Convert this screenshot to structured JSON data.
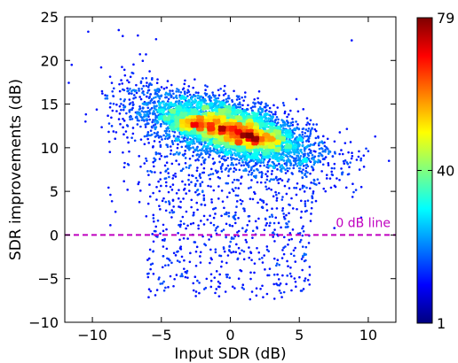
{
  "chart_data": {
    "type": "scatter",
    "xlabel": "Input SDR (dB)",
    "ylabel": "SDR improvements (dB)",
    "xlim": [
      -12,
      12
    ],
    "ylim": [
      -10,
      25
    ],
    "xticks": [
      -10,
      -5,
      0,
      5,
      10
    ],
    "yticks": [
      -10,
      -5,
      0,
      5,
      10,
      15,
      20,
      25
    ],
    "grid": false,
    "colormap": "jet",
    "reference_line": {
      "y": 0,
      "label": "0 dB line",
      "style": "dashed",
      "color": "#bf00bf"
    },
    "colorbar": {
      "min": 1,
      "max": 79,
      "ticks": [
        1,
        40,
        79
      ]
    },
    "point_cloud": {
      "description_of_distribution": "dense elongated cluster with negative slope plus sparse tail",
      "core": {
        "x_center": 0,
        "y_at_x0": 12,
        "slope": -0.4,
        "x_spread": 2.9,
        "y_spread": 1.6
      },
      "high_density_peaks": [
        {
          "x": -2.5,
          "y": 12.8
        },
        {
          "x": 2.0,
          "y": 11.0
        },
        {
          "x": 0.3,
          "y": 11.9
        }
      ],
      "sparse_tail": {
        "x_range": [
          -6,
          6
        ],
        "y_range": [
          -7.5,
          8
        ]
      },
      "outliers": [
        {
          "x": -10.3,
          "y": 23.3
        },
        {
          "x": -7.8,
          "y": 22.8
        },
        {
          "x": -11.5,
          "y": 19.5
        },
        {
          "x": 8.8,
          "y": 22.3
        },
        {
          "x": 11.5,
          "y": 8.5
        },
        {
          "x": -2.5,
          "y": -7.0
        },
        {
          "x": 3.2,
          "y": -7.3
        },
        {
          "x": 9.5,
          "y": 5.5
        },
        {
          "x": -10.5,
          "y": 13.0
        }
      ]
    }
  }
}
